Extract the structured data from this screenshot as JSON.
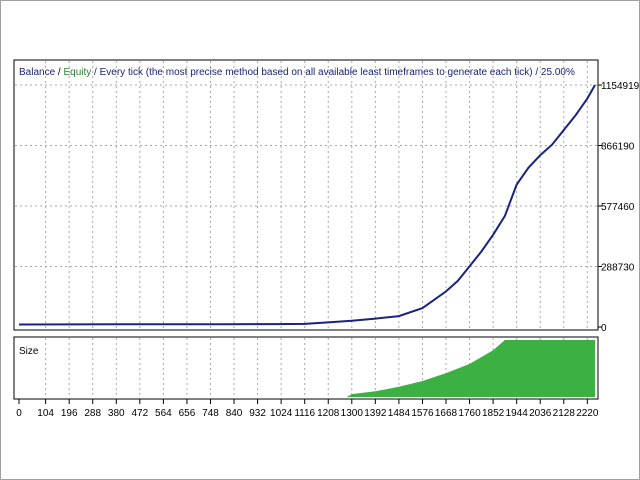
{
  "legend": {
    "balance": "Balance",
    "sep1": " / ",
    "equity": "Equity",
    "rest": " / Every tick (the most precise method based on all available least timeframes to generate each tick) / 25.00%"
  },
  "size_label": "Size",
  "colors": {
    "balance": "#1a237e",
    "equity": "#2e7d32",
    "size": "#3cb043",
    "grid": "#a8a8a8"
  },
  "chart_data": [
    {
      "type": "line",
      "title": "",
      "series": [
        {
          "name": "Balance",
          "x": [
            0,
            200,
            400,
            600,
            800,
            1000,
            1116,
            1208,
            1300,
            1392,
            1484,
            1576,
            1622,
            1668,
            1714,
            1760,
            1806,
            1852,
            1898,
            1944,
            1990,
            2036,
            2082,
            2128,
            2174,
            2220,
            2250
          ],
          "values": [
            12000,
            12500,
            12800,
            13200,
            13600,
            14000,
            15000,
            22000,
            30000,
            40000,
            52000,
            90000,
            130000,
            170000,
            220000,
            290000,
            360000,
            440000,
            530000,
            680000,
            760000,
            820000,
            870000,
            940000,
            1010000,
            1090000,
            1154919
          ]
        }
      ],
      "x_ticks": [
        0,
        104,
        196,
        288,
        380,
        472,
        564,
        656,
        748,
        840,
        932,
        1024,
        1116,
        1208,
        1300,
        1392,
        1484,
        1576,
        1668,
        1760,
        1852,
        1944,
        2036,
        2128,
        2220
      ],
      "y_ticks": [
        0,
        288730,
        577460,
        866190,
        1154919
      ],
      "xlim": [
        0,
        2250
      ],
      "ylim": [
        0,
        1154919
      ],
      "grid": true
    },
    {
      "type": "area",
      "title": "Size",
      "x": [
        0,
        1280,
        1300,
        1392,
        1484,
        1576,
        1668,
        1760,
        1806,
        1852,
        1898,
        1944,
        2036,
        2128,
        2220,
        2250
      ],
      "values": [
        0,
        0,
        0.05,
        0.1,
        0.18,
        0.28,
        0.42,
        0.58,
        0.7,
        0.82,
        1.0,
        1.0,
        1.0,
        1.0,
        1.0,
        1.0
      ],
      "xlim": [
        0,
        2250
      ],
      "ylim": [
        0,
        1
      ]
    }
  ]
}
